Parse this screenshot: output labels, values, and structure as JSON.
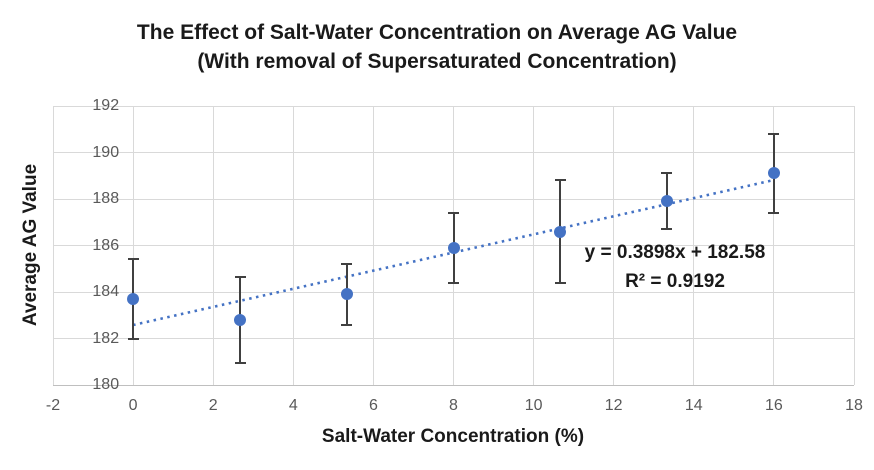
{
  "chart_data": {
    "type": "scatter",
    "title": "The Effect of Salt-Water Concentration on Average AG Value",
    "subtitle": "(With removal of Supersaturated Concentration)",
    "xlabel": "Salt-Water Concentration (%)",
    "ylabel": "Average AG Value",
    "x": [
      0,
      2.67,
      5.33,
      8,
      10.67,
      13.33,
      16
    ],
    "y": [
      183.7,
      182.8,
      183.9,
      185.9,
      186.6,
      187.9,
      189.1
    ],
    "y_error": [
      1.7,
      1.85,
      1.3,
      1.5,
      2.2,
      1.2,
      1.7
    ],
    "xlim": [
      -2,
      18
    ],
    "ylim": [
      180,
      192
    ],
    "x_ticks": [
      -2,
      0,
      2,
      4,
      6,
      8,
      10,
      12,
      14,
      16,
      18
    ],
    "y_ticks": [
      180,
      182,
      184,
      186,
      188,
      190,
      192
    ],
    "grid": true,
    "legend": "none",
    "trendline": {
      "slope": 0.3898,
      "intercept": 182.58,
      "x_start": 0,
      "x_end": 16,
      "style": "dotted",
      "equation_label": "y = 0.3898x + 182.58",
      "r_squared_label": "R² = 0.9192"
    },
    "colors": {
      "marker": "#4472C4",
      "trendline": "#4472C4",
      "error_bar": "#404040",
      "gridline": "#D9D9D9",
      "axis_line": "#BFBFBF",
      "tick_label": "#595959",
      "text": "#1A1A1A"
    }
  }
}
